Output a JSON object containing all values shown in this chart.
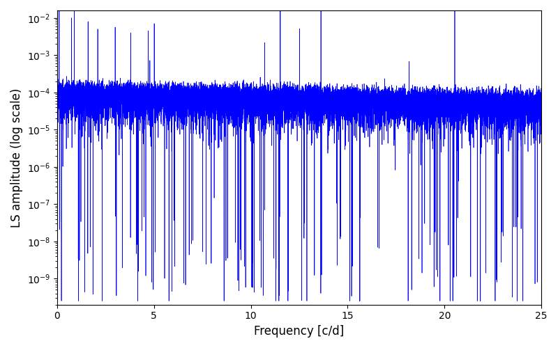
{
  "title": "",
  "xlabel": "Frequency [c/d]",
  "ylabel": "LS amplitude (log scale)",
  "line_color": "#0000ff",
  "line_width": 0.5,
  "xlim": [
    0,
    25
  ],
  "ylim_log_min": -9.7,
  "ylim_log_max": -1.8,
  "freq_min": 0.0,
  "freq_max": 25.0,
  "n_points": 15000,
  "seed": 12345,
  "figsize": [
    8.0,
    5.0
  ],
  "dpi": 100,
  "xticks": [
    0,
    5,
    10,
    15,
    20,
    25
  ],
  "background_color": "#ffffff"
}
